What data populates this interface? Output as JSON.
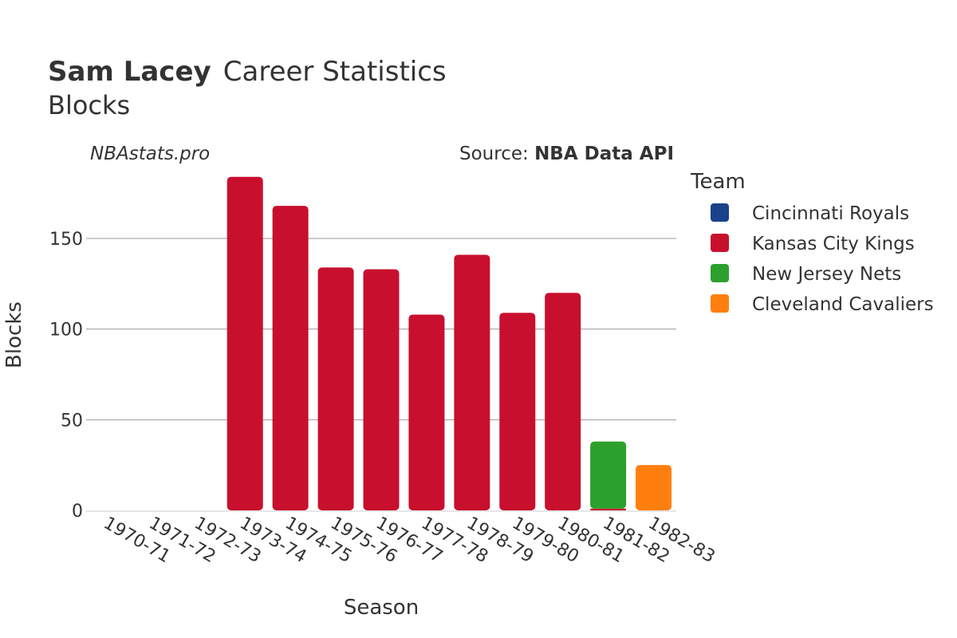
{
  "header": {
    "player_name": "Sam Lacey",
    "title_rest": "Career Statistics",
    "subtitle": "Blocks",
    "watermark": "NBAstats.pro",
    "source_prefix": "Source: ",
    "source_name": "NBA Data API"
  },
  "legend": {
    "title": "Team",
    "items": [
      {
        "label": "Cincinnati Royals",
        "color": "#1a428a"
      },
      {
        "label": "Kansas City Kings",
        "color": "#c8102e"
      },
      {
        "label": "New Jersey Nets",
        "color": "#2ca02c"
      },
      {
        "label": "Cleveland Cavaliers",
        "color": "#ff7f0e"
      }
    ]
  },
  "chart_data": {
    "type": "bar",
    "title": "Sam Lacey Career Statistics",
    "subtitle": "Blocks",
    "xlabel": "Season",
    "ylabel": "Blocks",
    "ylim": [
      0,
      190
    ],
    "yticks": [
      0,
      50,
      100,
      150
    ],
    "grid": true,
    "legend_position": "right",
    "categories": [
      "1970-71",
      "1971-72",
      "1972-73",
      "1973-74",
      "1974-75",
      "1975-76",
      "1976-77",
      "1977-78",
      "1978-79",
      "1979-80",
      "1980-81",
      "1981-82",
      "1982-83"
    ],
    "series": [
      {
        "name": "Cincinnati Royals",
        "color": "#1a428a",
        "values": [
          0,
          0,
          0,
          null,
          null,
          null,
          null,
          null,
          null,
          null,
          null,
          null,
          null
        ]
      },
      {
        "name": "Kansas City Kings",
        "color": "#c8102e",
        "values": [
          null,
          null,
          null,
          184,
          168,
          134,
          133,
          108,
          141,
          109,
          120,
          1,
          null
        ]
      },
      {
        "name": "New Jersey Nets",
        "color": "#2ca02c",
        "values": [
          null,
          null,
          null,
          null,
          null,
          null,
          null,
          null,
          null,
          null,
          null,
          37,
          null
        ]
      },
      {
        "name": "Cleveland Cavaliers",
        "color": "#ff7f0e",
        "values": [
          null,
          null,
          null,
          null,
          null,
          null,
          null,
          null,
          null,
          null,
          null,
          null,
          25
        ]
      }
    ]
  }
}
